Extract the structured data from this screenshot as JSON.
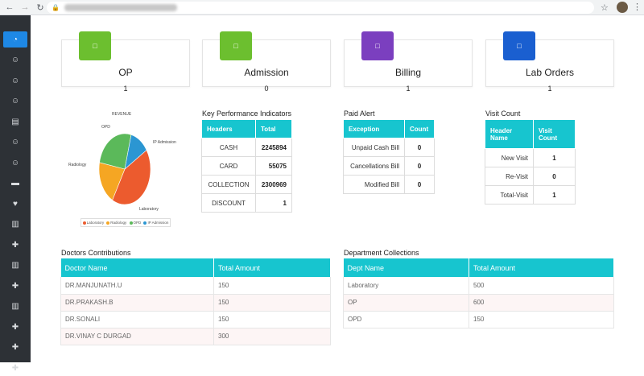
{
  "browser": {
    "back_icon": "arrow-left-icon",
    "forward_icon": "arrow-right-icon",
    "reload_icon": "reload-icon"
  },
  "cards": [
    {
      "title": "OP",
      "count": "1",
      "color": "#6cbf2f"
    },
    {
      "title": "Admission",
      "count": "0",
      "color": "#6cbf2f"
    },
    {
      "title": "Billing",
      "count": "1",
      "color": "#7b3fbf"
    },
    {
      "title": "Lab Orders",
      "count": "1",
      "color": "#1a5fd0"
    }
  ],
  "revenue_chart": {
    "title": "REVENUE",
    "legend": [
      "Laboratory",
      "Radiology",
      "OPD",
      "IP Admission"
    ],
    "chart_data": {
      "type": "pie",
      "title": "REVENUE",
      "categories": [
        "Laboratory",
        "Radiology",
        "OPD",
        "IP Admission"
      ],
      "values": [
        42,
        20,
        26,
        12
      ],
      "colors": [
        "#ec5b2e",
        "#f5a623",
        "#5bb95a",
        "#2b96d2"
      ]
    }
  },
  "kpi": {
    "title": "Key Performance Indicators",
    "headers": [
      "Headers",
      "Total"
    ],
    "rows": [
      [
        "CASH",
        "2245894"
      ],
      [
        "CARD",
        "55075"
      ],
      [
        "COLLECTION",
        "2300969"
      ],
      [
        "DISCOUNT",
        "1"
      ]
    ]
  },
  "paid_alert": {
    "title": "Paid Alert",
    "headers": [
      "Exception",
      "Count"
    ],
    "rows": [
      [
        "Unpaid Cash Bill",
        "0"
      ],
      [
        "Cancellations Bill",
        "0"
      ],
      [
        "Modified Bill",
        "0"
      ]
    ]
  },
  "visit_count": {
    "title": "Visit Count",
    "headers": [
      "Header Name",
      "Visit Count"
    ],
    "rows": [
      [
        "New Visit",
        "1"
      ],
      [
        "Re-Visit",
        "0"
      ],
      [
        "Total-Visit",
        "1"
      ]
    ]
  },
  "doctors": {
    "title": "Doctors Contributions",
    "headers": [
      "Doctor Name",
      "Total Amount"
    ],
    "rows": [
      [
        "DR.MANJUNATH.U",
        "150"
      ],
      [
        "DR.PRAKASH.B",
        "150"
      ],
      [
        "DR.SONALI",
        "150"
      ],
      [
        "DR.VINAY C DURGAD",
        "300"
      ]
    ]
  },
  "departments": {
    "title": "Department Collections",
    "headers": [
      "Dept Name",
      "Total Amount"
    ],
    "rows": [
      [
        "Laboratory",
        "500"
      ],
      [
        "OP",
        "600"
      ],
      [
        "OPD",
        "150"
      ]
    ]
  },
  "sidebar": {
    "items": [
      "dashboard-icon",
      "user-icon",
      "user-icon",
      "user-icon",
      "folder-icon",
      "user-icon",
      "user-icon",
      "bed-icon",
      "heartbeat-icon",
      "document-icon",
      "medkit-icon",
      "document-icon",
      "medkit-icon",
      "document-icon",
      "medkit-icon",
      "medkit-icon",
      "medkit-icon"
    ]
  }
}
